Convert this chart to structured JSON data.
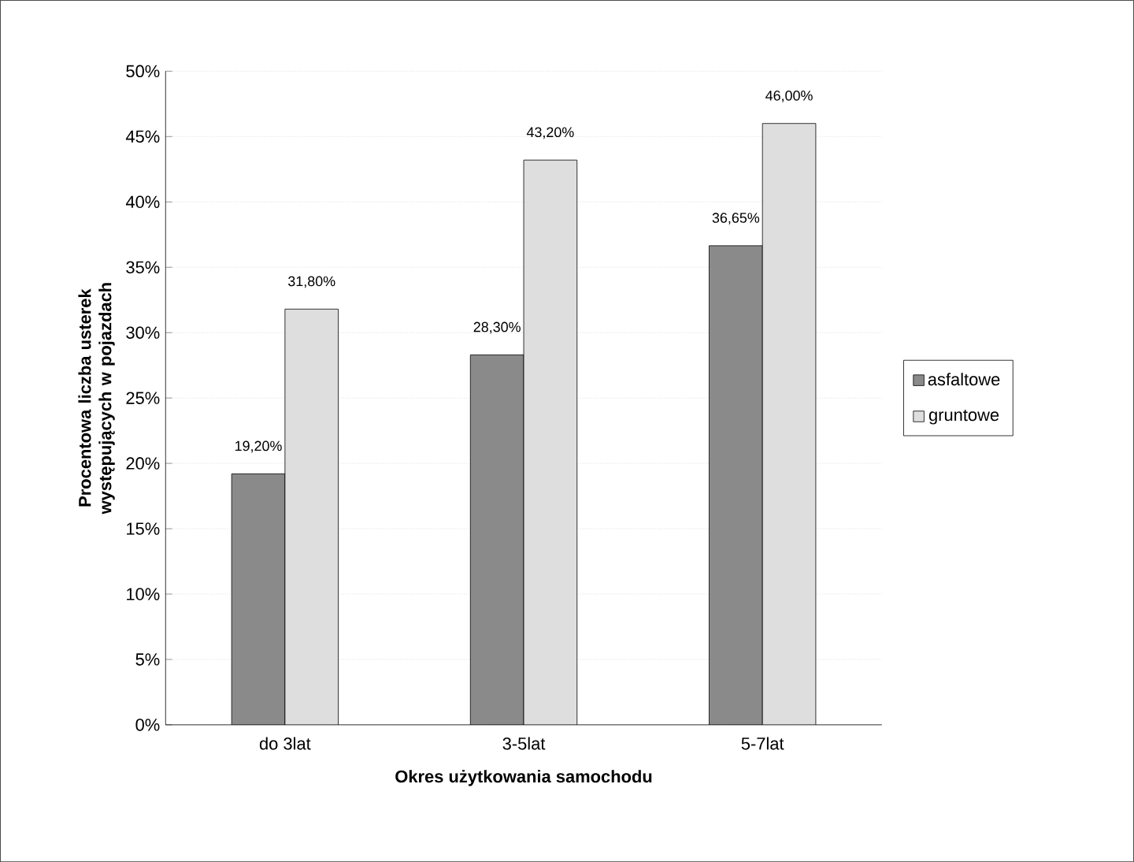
{
  "chart_data": {
    "type": "bar",
    "xlabel": "Okres  użytkowania samochodu",
    "ylabel": "Procentowa liczba usterek występujących w pojazdach",
    "categories": [
      "do 3lat",
      "3-5lat",
      "5-7lat"
    ],
    "series": [
      {
        "name": "asfaltowe",
        "color": "#8a8a8a",
        "values": [
          19.2,
          28.3,
          36.65
        ],
        "value_labels": [
          "19,20%",
          "28,30%",
          "36,65%"
        ]
      },
      {
        "name": "gruntowe",
        "color": "#dedede",
        "values": [
          31.8,
          43.2,
          46.0
        ],
        "value_labels": [
          "31,80%",
          "43,20%",
          "46,00%"
        ]
      }
    ],
    "ylim": [
      0,
      50
    ],
    "yticks": [
      {
        "value": 0,
        "label": "0%"
      },
      {
        "value": 5,
        "label": "5%"
      },
      {
        "value": 10,
        "label": "10%"
      },
      {
        "value": 15,
        "label": "15%"
      },
      {
        "value": 20,
        "label": "20%"
      },
      {
        "value": 25,
        "label": "25%"
      },
      {
        "value": 30,
        "label": "30%"
      },
      {
        "value": 35,
        "label": "35%"
      },
      {
        "value": 40,
        "label": "40%"
      },
      {
        "value": 45,
        "label": "45%"
      },
      {
        "value": 50,
        "label": "50%"
      }
    ],
    "grid": "y",
    "legend": "right"
  }
}
